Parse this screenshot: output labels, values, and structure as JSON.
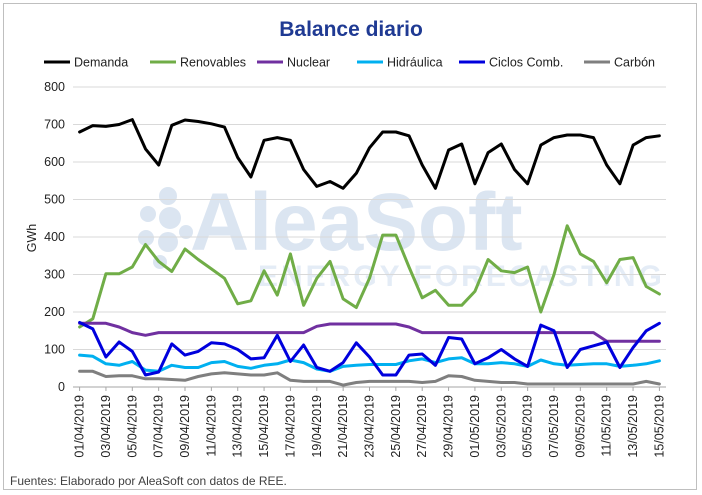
{
  "chart_data": {
    "type": "line",
    "title": "Balance diario",
    "ylabel": "GWh",
    "xlabel": "",
    "ylim": [
      0,
      800
    ],
    "yticks": [
      0,
      100,
      200,
      300,
      400,
      500,
      600,
      700,
      800
    ],
    "grid": true,
    "legend_position": "top",
    "x": [
      "01/04/2019",
      "02/04/2019",
      "03/04/2019",
      "04/04/2019",
      "05/04/2019",
      "06/04/2019",
      "07/04/2019",
      "08/04/2019",
      "09/04/2019",
      "10/04/2019",
      "11/04/2019",
      "12/04/2019",
      "13/04/2019",
      "14/04/2019",
      "15/04/2019",
      "16/04/2019",
      "17/04/2019",
      "18/04/2019",
      "19/04/2019",
      "20/04/2019",
      "21/04/2019",
      "22/04/2019",
      "23/04/2019",
      "24/04/2019",
      "25/04/2019",
      "26/04/2019",
      "27/04/2019",
      "28/04/2019",
      "29/04/2019",
      "30/04/2019",
      "01/05/2019",
      "02/05/2019",
      "03/05/2019",
      "04/05/2019",
      "05/05/2019",
      "06/05/2019",
      "07/05/2019",
      "08/05/2019",
      "09/05/2019",
      "10/05/2019",
      "11/05/2019",
      "12/05/2019",
      "13/05/2019",
      "14/05/2019",
      "15/05/2019"
    ],
    "x_tick_labels": [
      "01/04/2019",
      "03/04/2019",
      "05/04/2019",
      "07/04/2019",
      "09/04/2019",
      "11/04/2019",
      "13/04/2019",
      "15/04/2019",
      "17/04/2019",
      "19/04/2019",
      "21/04/2019",
      "23/04/2019",
      "25/04/2019",
      "27/04/2019",
      "29/04/2019",
      "01/05/2019",
      "03/05/2019",
      "05/05/2019",
      "07/05/2019",
      "09/05/2019",
      "11/05/2019",
      "13/05/2019",
      "15/05/2019"
    ],
    "series": [
      {
        "name": "Demanda",
        "color": "#000000",
        "values": [
          680,
          697,
          695,
          700,
          713,
          635,
          592,
          698,
          712,
          708,
          702,
          693,
          612,
          560,
          658,
          665,
          658,
          580,
          535,
          548,
          530,
          570,
          638,
          680,
          680,
          670,
          592,
          530,
          632,
          648,
          542,
          625,
          648,
          580,
          542,
          645,
          665,
          672,
          672,
          665,
          592,
          542,
          645,
          665,
          670
        ]
      },
      {
        "name": "Renovables",
        "color": "#70ad47",
        "values": [
          160,
          182,
          302,
          302,
          320,
          380,
          335,
          308,
          368,
          340,
          315,
          290,
          222,
          230,
          310,
          245,
          355,
          218,
          290,
          335,
          235,
          212,
          290,
          405,
          405,
          320,
          238,
          258,
          218,
          218,
          255,
          340,
          310,
          305,
          320,
          200,
          300,
          430,
          355,
          335,
          278,
          340,
          345,
          268,
          248
        ]
      },
      {
        "name": "Nuclear",
        "color": "#7030a0",
        "values": [
          170,
          170,
          170,
          160,
          145,
          138,
          145,
          145,
          145,
          145,
          145,
          145,
          145,
          145,
          145,
          145,
          145,
          145,
          162,
          168,
          168,
          168,
          168,
          168,
          168,
          160,
          145,
          145,
          145,
          145,
          145,
          145,
          145,
          145,
          145,
          145,
          145,
          145,
          145,
          145,
          122,
          122,
          122,
          122,
          122
        ]
      },
      {
        "name": "Hidráulica",
        "color": "#00b0f0",
        "values": [
          85,
          82,
          62,
          58,
          68,
          45,
          42,
          58,
          52,
          52,
          65,
          68,
          55,
          50,
          58,
          62,
          72,
          65,
          48,
          42,
          55,
          58,
          60,
          60,
          60,
          70,
          75,
          65,
          75,
          78,
          62,
          62,
          65,
          62,
          55,
          72,
          62,
          58,
          60,
          62,
          62,
          55,
          58,
          62,
          70
        ]
      },
      {
        "name": "Ciclos Comb.",
        "color": "#0000dd",
        "values": [
          172,
          155,
          80,
          120,
          95,
          32,
          40,
          115,
          85,
          95,
          118,
          115,
          100,
          75,
          78,
          138,
          68,
          112,
          52,
          42,
          65,
          118,
          80,
          32,
          32,
          85,
          88,
          58,
          132,
          128,
          62,
          78,
          100,
          75,
          55,
          165,
          150,
          52,
          100,
          110,
          120,
          52,
          105,
          150,
          170
        ]
      },
      {
        "name": "Carbón",
        "color": "#7f7f7f",
        "values": [
          42,
          42,
          28,
          30,
          30,
          22,
          22,
          20,
          18,
          28,
          35,
          38,
          35,
          32,
          32,
          38,
          18,
          15,
          15,
          15,
          5,
          12,
          15,
          15,
          15,
          15,
          12,
          15,
          30,
          28,
          18,
          15,
          12,
          12,
          8,
          8,
          8,
          8,
          8,
          8,
          8,
          8,
          8,
          15,
          8
        ]
      }
    ]
  },
  "watermark": {
    "main": "AleaSoft",
    "sub": "ENERGY FORECASTING"
  },
  "footer": "Fuentes: Elaborado por AleaSoft con datos de REE."
}
